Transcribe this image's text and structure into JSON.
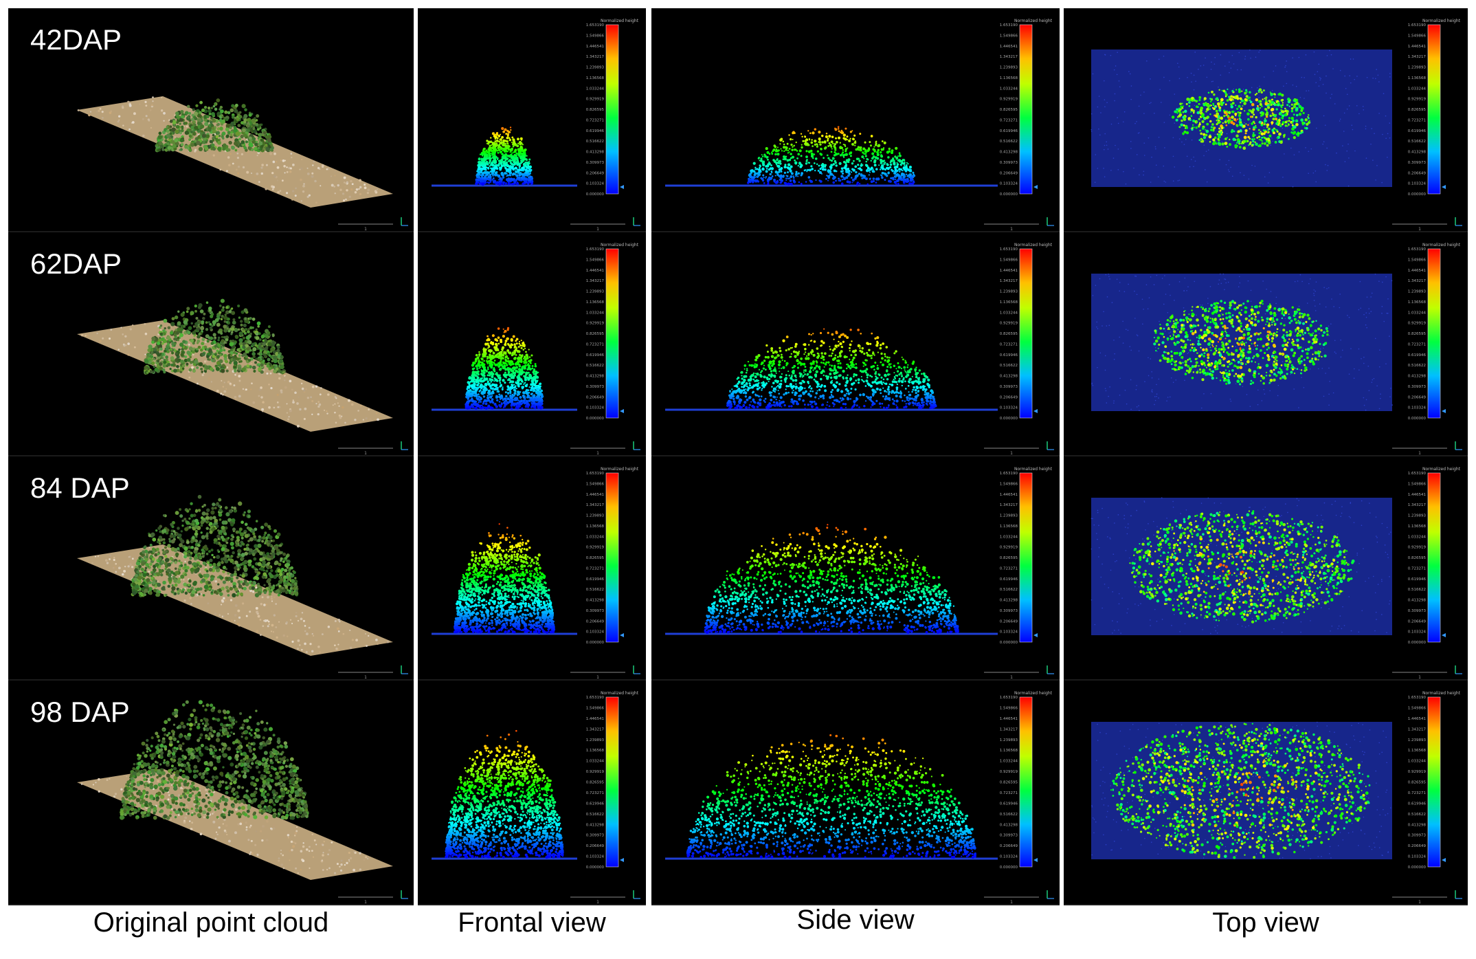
{
  "stages": [
    "42DAP",
    "62DAP",
    "84 DAP",
    "98 DAP"
  ],
  "columns": [
    "Original point cloud",
    "Frontal view",
    "Side view",
    "Top view"
  ],
  "colorbar": {
    "title": "Normalized height",
    "ticks": [
      "1.653190",
      "1.549866",
      "1.446541",
      "1.343217",
      "1.239893",
      "1.136568",
      "1.033244",
      "0.929919",
      "0.826595",
      "0.723271",
      "0.619946",
      "0.516622",
      "0.413298",
      "0.309973",
      "0.206649",
      "0.103324",
      "0.000000"
    ]
  },
  "scale_label": "1",
  "colors": {
    "ground": "#c9ae82",
    "canopy": "#4f7a3a",
    "base": "#1f3fd6",
    "top_bg": "#1a2a9a"
  }
}
